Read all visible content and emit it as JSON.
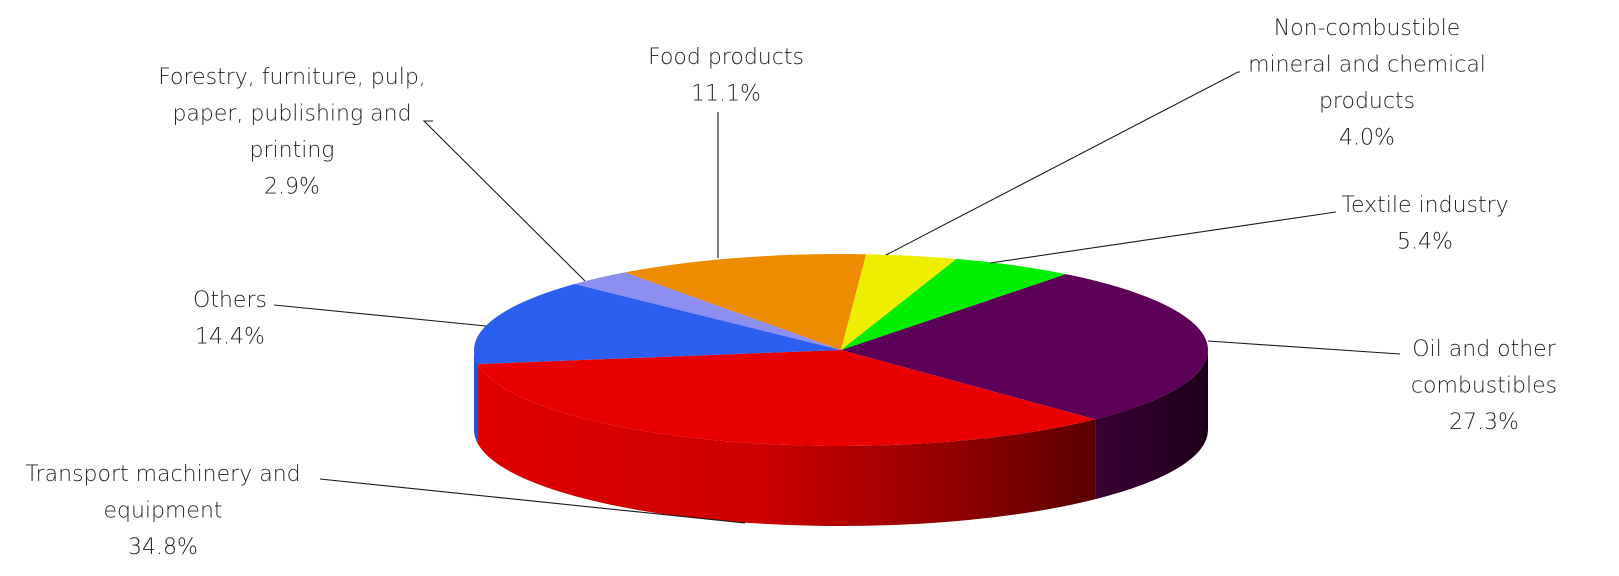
{
  "chart_data": {
    "type": "pie",
    "title": "",
    "style": "3d-exploded-none",
    "slices": [
      {
        "label": "Oil and other combustibles",
        "label_lines": [
          "Oil and other",
          "combustibles"
        ],
        "value": 27.3,
        "value_text": "27.3%",
        "color": "#5c0058",
        "side_color": "#2a0026"
      },
      {
        "label": "Transport machinery and equipment",
        "label_lines": [
          "Transport machinery and",
          "equipment"
        ],
        "value": 34.8,
        "value_text": "34.8%",
        "color": "#e80000",
        "side_color": "#b80000"
      },
      {
        "label": "Others",
        "label_lines": [
          "Others"
        ],
        "value": 14.4,
        "value_text": "14.4%",
        "color": "#2c5ff0",
        "side_color": "#2050d8"
      },
      {
        "label": "Forestry, furniture, pulp, paper, publishing and printing",
        "label_lines": [
          "Forestry, furniture, pulp,",
          "paper, publishing and",
          "printing"
        ],
        "value": 2.9,
        "value_text": "2.9%",
        "color": "#8c8ef0",
        "side_color": "#6e70d0"
      },
      {
        "label": "Food products",
        "label_lines": [
          "Food products"
        ],
        "value": 11.1,
        "value_text": "11.1%",
        "color": "#ee8c00",
        "side_color": "#c07000"
      },
      {
        "label": "Non-combustible mineral and chemical products",
        "label_lines": [
          "Non-combustible",
          "mineral and chemical",
          "products"
        ],
        "value": 4.0,
        "value_text": "4.0%",
        "color": "#eeee00",
        "side_color": "#c0c000"
      },
      {
        "label": "Textile industry",
        "label_lines": [
          "Textile industry"
        ],
        "value": 5.4,
        "value_text": "5.4%",
        "color": "#00ee00",
        "side_color": "#00b800"
      }
    ]
  }
}
